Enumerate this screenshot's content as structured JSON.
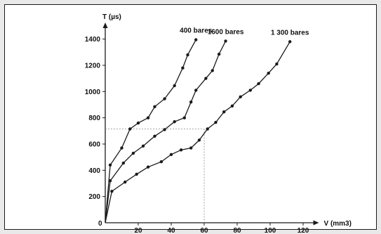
{
  "chart_data": {
    "type": "line",
    "title": "",
    "xlabel": "V (mm3)",
    "ylabel": "T (µs)",
    "xlim": [
      0,
      130
    ],
    "ylim": [
      0,
      1500
    ],
    "x_ticks": [
      0,
      20,
      40,
      60,
      80,
      100,
      120
    ],
    "y_ticks": [
      200,
      400,
      600,
      800,
      1000,
      1200,
      1400
    ],
    "origin_label": "0",
    "grid": false,
    "colors": {
      "line": "#1a1a1a",
      "point": "#1a1a1a",
      "reference": "#888888"
    },
    "reference_point": {
      "x": 60,
      "y": 715
    },
    "series": [
      {
        "name": "400 bares",
        "points": [
          [
            0,
            0
          ],
          [
            3,
            440
          ],
          [
            10,
            570
          ],
          [
            15,
            715
          ],
          [
            20,
            760
          ],
          [
            26,
            800
          ],
          [
            30,
            885
          ],
          [
            36,
            945
          ],
          [
            42,
            1045
          ],
          [
            47,
            1180
          ],
          [
            50,
            1280
          ],
          [
            55,
            1395
          ]
        ]
      },
      {
        "name": "1600 bares",
        "points": [
          [
            0,
            0
          ],
          [
            3,
            320
          ],
          [
            11,
            455
          ],
          [
            17,
            530
          ],
          [
            23,
            585
          ],
          [
            30,
            660
          ],
          [
            36,
            710
          ],
          [
            42,
            770
          ],
          [
            48,
            800
          ],
          [
            52,
            920
          ],
          [
            55,
            1010
          ],
          [
            61,
            1100
          ],
          [
            65,
            1160
          ],
          [
            69,
            1285
          ],
          [
            73,
            1385
          ]
        ]
      },
      {
        "name": "1 300 bares",
        "points": [
          [
            0,
            0
          ],
          [
            4,
            240
          ],
          [
            12,
            310
          ],
          [
            19,
            370
          ],
          [
            26,
            425
          ],
          [
            34,
            465
          ],
          [
            40,
            520
          ],
          [
            46,
            555
          ],
          [
            52,
            570
          ],
          [
            57,
            630
          ],
          [
            62,
            715
          ],
          [
            67,
            765
          ],
          [
            72,
            845
          ],
          [
            77,
            890
          ],
          [
            82,
            960
          ],
          [
            88,
            1010
          ],
          [
            93,
            1060
          ],
          [
            99,
            1140
          ],
          [
            104,
            1210
          ],
          [
            112,
            1380
          ]
        ]
      }
    ]
  }
}
